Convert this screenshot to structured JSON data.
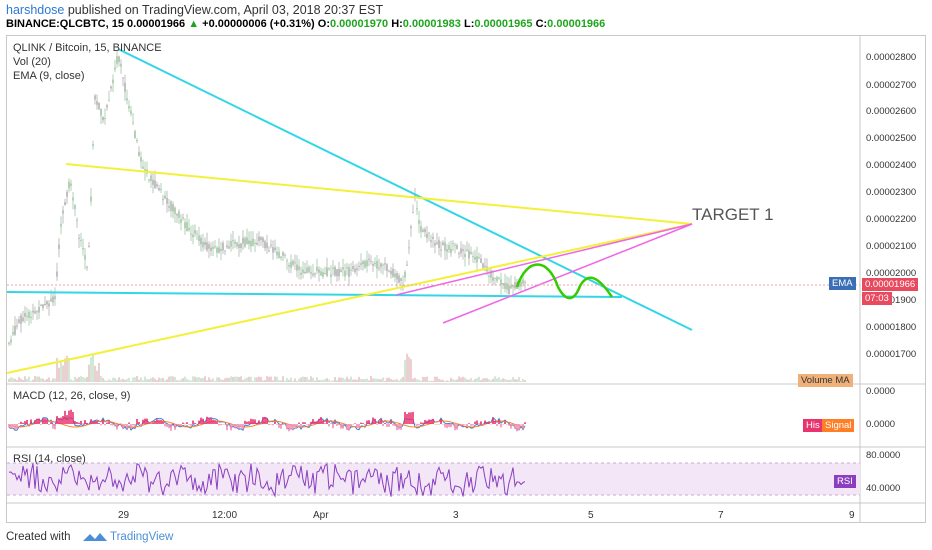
{
  "header": {
    "user": "harshdose",
    "published_text": "published on TradingView.com, April 03, 2018 20:37 EST",
    "symbol": "BINANCE:QLCBTC, 15",
    "last": "0.00001966",
    "change_arrow": "▲",
    "change": "+0.00000006 (+0.31%)",
    "o_label": "O:",
    "o_value": "0.00001970",
    "h_label": "H:",
    "h_value": "0.00001983",
    "l_label": "L:",
    "l_value": "0.00001965",
    "c_label": "C:",
    "c_value": "0.00001966"
  },
  "chart": {
    "title": "QLINK / Bitcoin, 15, BINANCE",
    "vol_label": "Vol (20)",
    "ema_label": "EMA (9, close)",
    "target_label": "TARGET 1",
    "y_ticks": [
      "0.00002800",
      "0.00002700",
      "0.00002600",
      "0.00002500",
      "0.00002400",
      "0.00002300",
      "0.00002200",
      "0.00002100",
      "0.00002000",
      "0.00001900",
      "0.00001800",
      "0.00001700"
    ],
    "ema_badge": "EMA",
    "price_badge": "0.00001966",
    "time_badge": "07:03",
    "volume_ma_badge": "Volume MA",
    "x_ticks": [
      "29",
      "12:00",
      "Apr",
      "3",
      "5",
      "7",
      "9"
    ],
    "colors": {
      "cyan": "#33d6e6",
      "yellow": "#f4f03a",
      "pink": "#ee66e6",
      "green": "#33cc00",
      "ema_blue": "#3a6fb8",
      "price_red": "#e84a5f"
    }
  },
  "macd": {
    "label": "MACD (12, 26, close, 9)",
    "y_ticks": [
      "0.0000",
      "0.0000"
    ],
    "hist_badge": "His",
    "signal_badge": "Signal"
  },
  "rsi": {
    "label": "RSI (14, close)",
    "y_ticks": [
      "80.0000",
      "40.0000"
    ],
    "rsi_badge": "RSI"
  },
  "footer": {
    "created_with": "Created with",
    "brand": "TradingView"
  }
}
